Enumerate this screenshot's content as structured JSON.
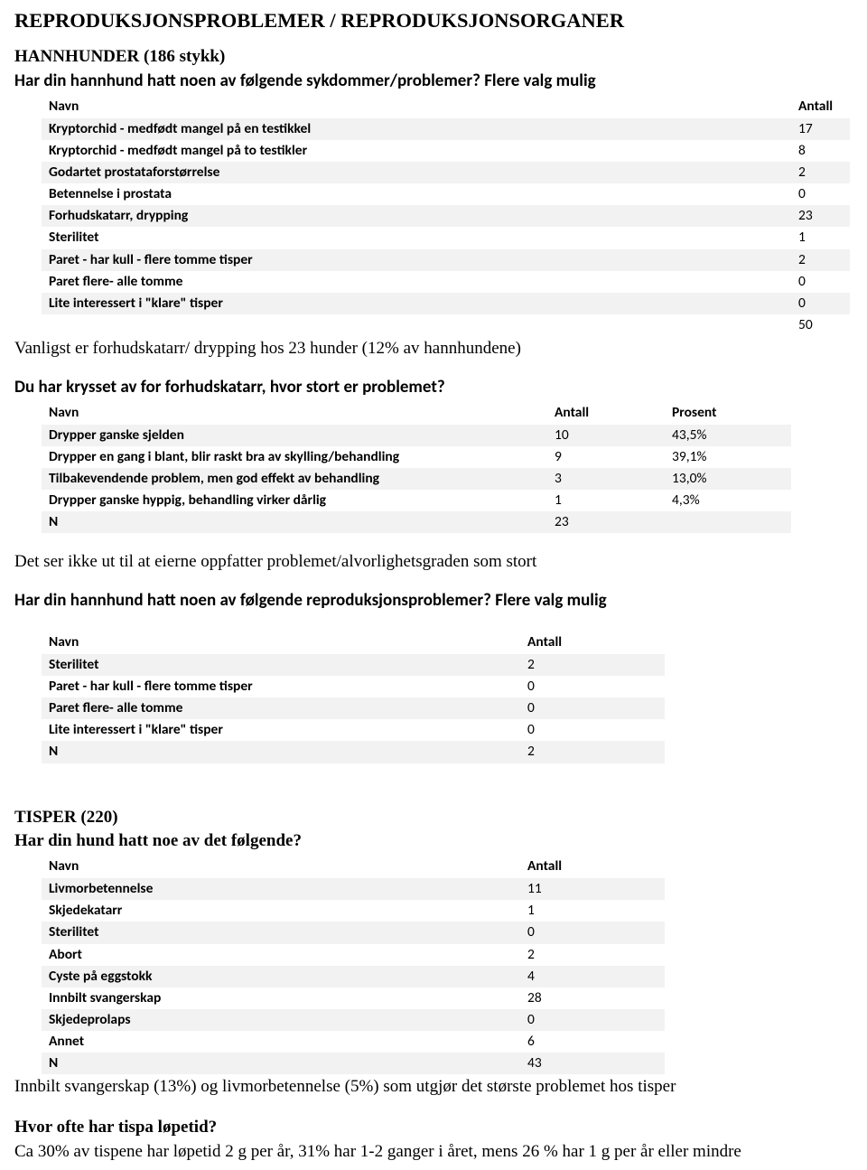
{
  "colors": {
    "row_odd_bg": "#f2f2f2",
    "row_even_bg": "#ffffff",
    "text": "#000000",
    "page_bg": "#ffffff"
  },
  "fonts": {
    "serif": "Times New Roman",
    "sans": "Calibri",
    "title_size_pt": 17,
    "question_size_pt": 14,
    "table_size_pt": 11.5
  },
  "main_title": "REPRODUKSJONSPROBLEMER / REPRODUKSJONSORGANER",
  "s1": {
    "heading": "HANNHUNDER (186 stykk)",
    "q": "Har din hannhund hatt noen av følgende sykdommer/problemer? Flere valg mulig",
    "cols": [
      "Navn",
      "Antall"
    ],
    "rows": [
      {
        "name": "Kryptorchid - medfødt mangel på en testikkel",
        "antall": "17"
      },
      {
        "name": "Kryptorchid - medfødt mangel på to testikler",
        "antall": "8"
      },
      {
        "name": "Godartet prostataforstørrelse",
        "antall": "2"
      },
      {
        "name": "Betennelse i prostata",
        "antall": "0"
      },
      {
        "name": "Forhudskatarr, drypping",
        "antall": "23"
      },
      {
        "name": "Sterilitet",
        "antall": "1"
      },
      {
        "name": "Paret - har kull - flere tomme tisper",
        "antall": "2"
      },
      {
        "name": "Paret flere- alle tomme",
        "antall": "0"
      },
      {
        "name": "Lite interessert i \"klare\" tisper",
        "antall": "0"
      }
    ],
    "total": "50",
    "note": "Vanligst er forhudskatarr/ drypping hos 23 hunder (12% av hannhundene)"
  },
  "s2": {
    "q": "Du har krysset av for forhudskatarr, hvor stort er problemet?",
    "cols": [
      "Navn",
      "Antall",
      "Prosent"
    ],
    "rows": [
      {
        "name": "Drypper ganske sjelden",
        "antall": "10",
        "prosent": "43,5%"
      },
      {
        "name": "Drypper en gang i blant, blir raskt bra av skylling/behandling",
        "antall": "9",
        "prosent": "39,1%"
      },
      {
        "name": "Tilbakevendende problem, men god effekt av behandling",
        "antall": "3",
        "prosent": "13,0%"
      },
      {
        "name": "Drypper ganske hyppig, behandling virker dårlig",
        "antall": "1",
        "prosent": "4,3%"
      },
      {
        "name": "N",
        "antall": "23",
        "prosent": ""
      }
    ],
    "note": "Det ser ikke ut til at eierne oppfatter problemet/alvorlighetsgraden som stort"
  },
  "s3": {
    "q": "Har din hannhund hatt noen av følgende reproduksjonsproblemer? Flere valg mulig",
    "cols": [
      "Navn",
      "Antall"
    ],
    "rows": [
      {
        "name": "Sterilitet",
        "antall": "2"
      },
      {
        "name": "Paret - har kull - flere tomme tisper",
        "antall": "0"
      },
      {
        "name": "Paret flere- alle tomme",
        "antall": "0"
      },
      {
        "name": "Lite interessert i \"klare\" tisper",
        "antall": "0"
      },
      {
        "name": "N",
        "antall": "2"
      }
    ]
  },
  "s4": {
    "heading": "TISPER (220)",
    "q": "Har din hund hatt noe av det følgende?",
    "cols": [
      "Navn",
      "Antall"
    ],
    "rows": [
      {
        "name": "Livmorbetennelse",
        "antall": "11"
      },
      {
        "name": "Skjedekatarr",
        "antall": "1"
      },
      {
        "name": "Sterilitet",
        "antall": "0"
      },
      {
        "name": "Abort",
        "antall": "2"
      },
      {
        "name": "Cyste på eggstokk",
        "antall": "4"
      },
      {
        "name": "Innbilt svangerskap",
        "antall": "28"
      },
      {
        "name": "Skjedeprolaps",
        "antall": "0"
      },
      {
        "name": "Annet",
        "antall": "6"
      },
      {
        "name": "N",
        "antall": "43"
      }
    ],
    "note": "Innbilt svangerskap (13%) og livmorbetennelse (5%) som utgjør det største problemet hos tisper"
  },
  "s5": {
    "q": "Hvor ofte har tispa løpetid?",
    "note": "Ca 30% av tispene har løpetid 2 g per år, 31% har 1-2 ganger i året, mens 26 % har 1 g per år eller mindre"
  }
}
